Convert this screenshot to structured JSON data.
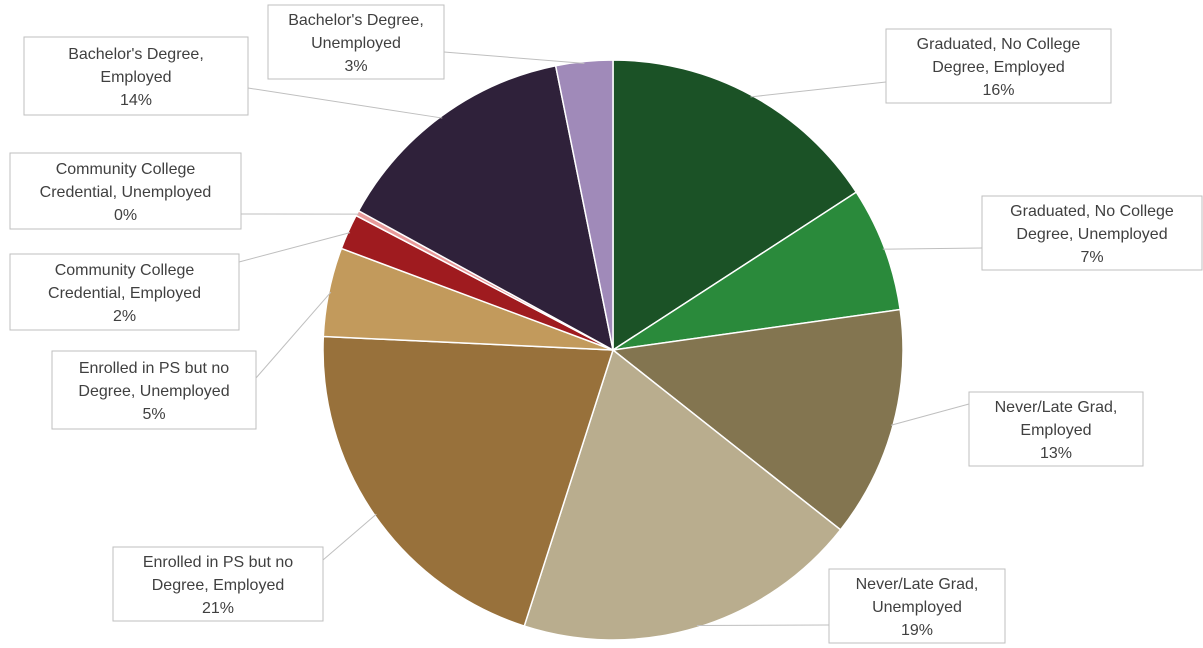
{
  "chart_data": {
    "type": "pie",
    "title": "",
    "start_angle_deg": 0,
    "direction": "clockwise",
    "slices": [
      {
        "name": "Graduated, No College Degree, Employed",
        "lines": [
          "Graduated, No College",
          "Degree, Employed"
        ],
        "value": 16,
        "label": "16%",
        "color": "#1b5226"
      },
      {
        "name": "Graduated, No College Degree, Unemployed",
        "lines": [
          "Graduated, No College",
          "Degree, Unemployed"
        ],
        "value": 7,
        "label": "7%",
        "color": "#2a8a3b"
      },
      {
        "name": "Never/Late Grad, Employed",
        "lines": [
          "Never/Late Grad,",
          "Employed"
        ],
        "value": 13,
        "label": "13%",
        "color": "#837550"
      },
      {
        "name": "Never/Late Grad, Unemployed",
        "lines": [
          "Never/Late Grad,",
          "Unemployed"
        ],
        "value": 19.5,
        "label": "19%",
        "color": "#b9ad8e"
      },
      {
        "name": "Enrolled in PS but no Degree, Employed",
        "lines": [
          "Enrolled in PS but no",
          "Degree, Employed"
        ],
        "value": 21,
        "label": "21%",
        "color": "#98713b"
      },
      {
        "name": "Enrolled in PS but no Degree, Unemployed",
        "lines": [
          "Enrolled in PS but no",
          "Degree, Unemployed"
        ],
        "value": 5,
        "label": "5%",
        "color": "#c29a5c"
      },
      {
        "name": "Community College Credential, Employed",
        "lines": [
          "Community College",
          "Credential, Employed"
        ],
        "value": 2,
        "label": "2%",
        "color": "#9f1b1f"
      },
      {
        "name": "Community College Credential, Unemployed",
        "lines": [
          "Community College",
          "Credential, Unemployed"
        ],
        "value": 0.3,
        "label": "0%",
        "color": "#e89a9a"
      },
      {
        "name": "Bachelor's Degree, Employed",
        "lines": [
          "Bachelor's Degree,",
          "Employed"
        ],
        "value": 14,
        "label": "14%",
        "color": "#2f213a"
      },
      {
        "name": "Bachelor's Degree, Unemployed",
        "lines": [
          "Bachelor's Degree,",
          "Unemployed"
        ],
        "value": 3.2,
        "label": "3%",
        "color": "#a08ab9"
      }
    ]
  }
}
